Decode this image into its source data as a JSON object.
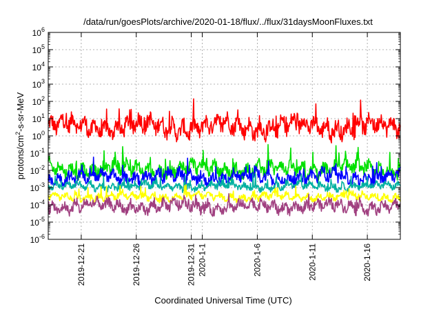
{
  "chart_data": {
    "type": "line",
    "title": "/data/run/goesPlots/archive/2020-01-18/flux/../flux/31daysMoonFluxes.txt",
    "xlabel": "Coordinated Universal Time (UTC)",
    "ylabel_parts": {
      "base": "protons/cm",
      "sup": "2",
      "rest": "-s-sr-MeV"
    },
    "yscale": "log",
    "ylim": [
      1e-06,
      1000000.0
    ],
    "xlim": [
      "2019-12-18",
      "2020-01-19"
    ],
    "grid": true,
    "y_ticks": [
      {
        "value": 1e-06,
        "base": "10",
        "exp": "-6"
      },
      {
        "value": 1e-05,
        "base": "10",
        "exp": "-5"
      },
      {
        "value": 0.0001,
        "base": "10",
        "exp": "-4"
      },
      {
        "value": 0.001,
        "base": "10",
        "exp": "-3"
      },
      {
        "value": 0.01,
        "base": "10",
        "exp": "-2"
      },
      {
        "value": 0.1,
        "base": "10",
        "exp": "-1"
      },
      {
        "value": 1,
        "base": "10",
        "exp": "0"
      },
      {
        "value": 10,
        "base": "10",
        "exp": "1"
      },
      {
        "value": 100,
        "base": "10",
        "exp": "2"
      },
      {
        "value": 1000.0,
        "base": "10",
        "exp": "3"
      },
      {
        "value": 10000.0,
        "base": "10",
        "exp": "4"
      },
      {
        "value": 100000.0,
        "base": "10",
        "exp": "5"
      },
      {
        "value": 1000000.0,
        "base": "10",
        "exp": "6"
      }
    ],
    "x_ticks": [
      {
        "date": "2019-12-21",
        "label": "2019-12-21"
      },
      {
        "date": "2019-12-26",
        "label": "2019-12-26"
      },
      {
        "date": "2019-12-31",
        "label": "2019-12-31"
      },
      {
        "date": "2020-01-01",
        "label": "2020-1-1"
      },
      {
        "date": "2020-01-06",
        "label": "2020-1-6"
      },
      {
        "date": "2020-01-11",
        "label": "2020-1-11"
      },
      {
        "date": "2020-01-16",
        "label": "2020-1-16"
      }
    ],
    "series": [
      {
        "color": "#ff0000",
        "median": 3.5,
        "spread": 0.9,
        "spikes": 1.1
      },
      {
        "color": "#00e000",
        "median": 0.012,
        "spread": 0.7,
        "spikes": 1.0
      },
      {
        "color": "#0000ff",
        "median": 0.004,
        "spread": 0.6,
        "spikes": 0.8
      },
      {
        "color": "#00b0a0",
        "median": 0.0012,
        "spread": 0.35,
        "spikes": 0.6
      },
      {
        "color": "#ffff00",
        "median": 0.0003,
        "spread": 0.35,
        "spikes": 0.5
      },
      {
        "color": "#a04080",
        "median": 8e-05,
        "spread": 0.55,
        "spikes": 0.6
      }
    ]
  }
}
